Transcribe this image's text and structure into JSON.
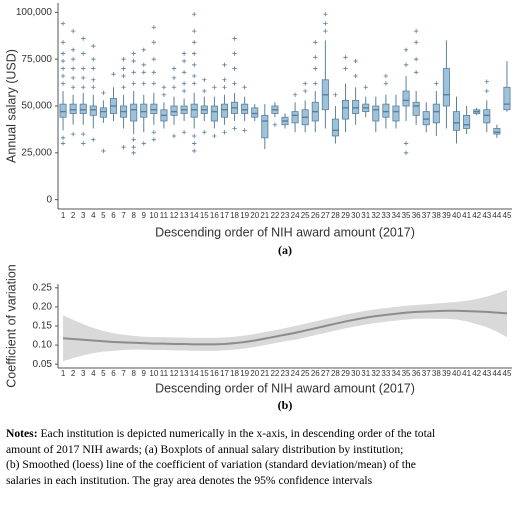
{
  "chart_data": [
    {
      "type": "boxplot",
      "panel_label": "(a)",
      "x_label": "Descending order of NIH award amount (2017)",
      "y_label": "Annual salary (USD)",
      "categories": [
        "1",
        "2",
        "3",
        "4",
        "5",
        "6",
        "7",
        "8",
        "9",
        "10",
        "11",
        "12",
        "13",
        "14",
        "15",
        "16",
        "17",
        "18",
        "19",
        "20",
        "21",
        "22",
        "23",
        "24",
        "25",
        "26",
        "27",
        "28",
        "29",
        "30",
        "31",
        "32",
        "33",
        "34",
        "35",
        "36",
        "37",
        "38",
        "39",
        "40",
        "41",
        "42",
        "43",
        "44",
        "45"
      ],
      "box_color": "#9cc2dd",
      "edge_color": "#5b7f98",
      "ylim": [
        -5000,
        105000
      ],
      "yticks": [
        0,
        {
          "value": 25000,
          "label": "25,000"
        },
        {
          "value": 50000,
          "label": "50,000"
        },
        {
          "value": 75000,
          "label": "75,000"
        },
        {
          "value": 100000,
          "label": "100,000"
        }
      ],
      "boxes": [
        {
          "low": 37000,
          "q1": 44000,
          "median": 47000,
          "q3": 51000,
          "high": 58000,
          "outliers": [
            30000,
            33000,
            62000,
            66000,
            70000,
            74000,
            78000,
            84000,
            94000
          ]
        },
        {
          "low": 40000,
          "q1": 46000,
          "median": 48000,
          "q3": 51000,
          "high": 56000,
          "outliers": [
            35000,
            60000,
            65000,
            70000,
            75000,
            80000,
            90000
          ]
        },
        {
          "low": 40000,
          "q1": 46000,
          "median": 48000,
          "q3": 51000,
          "high": 57000,
          "outliers": [
            30000,
            35000,
            60000,
            65000,
            70000,
            78000,
            86000
          ]
        },
        {
          "low": 38000,
          "q1": 45000,
          "median": 48000,
          "q3": 50000,
          "high": 56000,
          "outliers": [
            32000,
            60000,
            64000,
            70000,
            75000,
            82000
          ]
        },
        {
          "low": 41000,
          "q1": 44000,
          "median": 47000,
          "q3": 49000,
          "high": 53000,
          "outliers": [
            26000,
            57000
          ]
        },
        {
          "low": 42000,
          "q1": 46000,
          "median": 50000,
          "q3": 54000,
          "high": 60000,
          "outliers": [
            67000
          ]
        },
        {
          "low": 38000,
          "q1": 44000,
          "median": 47000,
          "q3": 50000,
          "high": 56000,
          "outliers": [
            28000,
            60000,
            66000,
            70000,
            75000
          ]
        },
        {
          "low": 35000,
          "q1": 42000,
          "median": 48000,
          "q3": 51000,
          "high": 58000,
          "outliers": [
            25000,
            28000,
            32000,
            62000,
            68000,
            74000,
            78000
          ]
        },
        {
          "low": 36000,
          "q1": 44000,
          "median": 47000,
          "q3": 51000,
          "high": 56000,
          "outliers": [
            30000,
            62000,
            68000,
            72000,
            80000
          ]
        },
        {
          "low": 40000,
          "q1": 46000,
          "median": 48000,
          "q3": 51000,
          "high": 57000,
          "outliers": [
            32000,
            36000,
            62000,
            68000,
            75000,
            84000,
            92000
          ]
        },
        {
          "low": 38000,
          "q1": 42000,
          "median": 45000,
          "q3": 48000,
          "high": 52000,
          "outliers": [
            56000,
            60000
          ]
        },
        {
          "low": 40000,
          "q1": 45000,
          "median": 47000,
          "q3": 50000,
          "high": 55000,
          "outliers": [
            34000,
            60000,
            65000,
            70000
          ]
        },
        {
          "low": 42000,
          "q1": 46000,
          "median": 48000,
          "q3": 50000,
          "high": 54000,
          "outliers": [
            36000,
            58000,
            62000,
            68000,
            74000,
            78000
          ]
        },
        {
          "low": 38000,
          "q1": 44000,
          "median": 48000,
          "q3": 51000,
          "high": 57000,
          "outliers": [
            26000,
            30000,
            34000,
            62000,
            66000,
            72000,
            78000,
            84000,
            90000,
            99000
          ]
        },
        {
          "low": 42000,
          "q1": 46000,
          "median": 48000,
          "q3": 50000,
          "high": 55000,
          "outliers": [
            36000,
            58000,
            64000
          ]
        },
        {
          "low": 38000,
          "q1": 42000,
          "median": 47000,
          "q3": 50000,
          "high": 55000,
          "outliers": [
            34000,
            60000
          ]
        },
        {
          "low": 40000,
          "q1": 44000,
          "median": 48000,
          "q3": 51000,
          "high": 56000,
          "outliers": [
            36000,
            60000,
            64000,
            72000
          ]
        },
        {
          "low": 42000,
          "q1": 46000,
          "median": 49000,
          "q3": 52000,
          "high": 57000,
          "outliers": [
            38000,
            62000,
            70000,
            78000,
            86000
          ]
        },
        {
          "low": 42000,
          "q1": 46000,
          "median": 48000,
          "q3": 51000,
          "high": 55000,
          "outliers": [
            37000,
            60000
          ]
        },
        {
          "low": 42000,
          "q1": 44000,
          "median": 46000,
          "q3": 49000,
          "high": 51000,
          "outliers": []
        },
        {
          "low": 27000,
          "q1": 33000,
          "median": 42000,
          "q3": 45000,
          "high": 51000,
          "outliers": []
        },
        {
          "low": 44000,
          "q1": 46000,
          "median": 48000,
          "q3": 50000,
          "high": 52000,
          "outliers": [
            40000
          ]
        },
        {
          "low": 38000,
          "q1": 40000,
          "median": 42000,
          "q3": 44000,
          "high": 46000,
          "outliers": []
        },
        {
          "low": 36000,
          "q1": 41000,
          "median": 45000,
          "q3": 47000,
          "high": 52000,
          "outliers": [
            56000
          ]
        },
        {
          "low": 36000,
          "q1": 40000,
          "median": 44000,
          "q3": 48000,
          "high": 53000,
          "outliers": [
            58000,
            62000
          ]
        },
        {
          "low": 36000,
          "q1": 42000,
          "median": 47000,
          "q3": 52000,
          "high": 58000,
          "outliers": [
            62000,
            70000,
            76000,
            84000
          ]
        },
        {
          "low": 38000,
          "q1": 48000,
          "median": 56000,
          "q3": 64000,
          "high": 85000,
          "outliers": [
            90000,
            94000,
            99000
          ]
        },
        {
          "low": 30000,
          "q1": 34000,
          "median": 37000,
          "q3": 43000,
          "high": 50000,
          "outliers": [
            56000
          ]
        },
        {
          "low": 36000,
          "q1": 43000,
          "median": 49000,
          "q3": 53000,
          "high": 62000,
          "outliers": [
            70000,
            76000
          ]
        },
        {
          "low": 40000,
          "q1": 46000,
          "median": 49000,
          "q3": 53000,
          "high": 60000,
          "outliers": [
            66000,
            74000
          ]
        },
        {
          "low": 44000,
          "q1": 47000,
          "median": 49000,
          "q3": 51000,
          "high": 55000,
          "outliers": [
            60000
          ]
        },
        {
          "low": 36000,
          "q1": 42000,
          "median": 48000,
          "q3": 50000,
          "high": 55000,
          "outliers": []
        },
        {
          "low": 38000,
          "q1": 44000,
          "median": 47000,
          "q3": 51000,
          "high": 56000,
          "outliers": [
            62000,
            66000
          ]
        },
        {
          "low": 38000,
          "q1": 42000,
          "median": 47000,
          "q3": 50000,
          "high": 56000,
          "outliers": []
        },
        {
          "low": 42000,
          "q1": 50000,
          "median": 53000,
          "q3": 58000,
          "high": 66000,
          "outliers": [
            25000,
            30000,
            72000,
            80000
          ]
        },
        {
          "low": 40000,
          "q1": 45000,
          "median": 50000,
          "q3": 52000,
          "high": 58000,
          "outliers": [
            68000,
            75000,
            84000,
            90000
          ]
        },
        {
          "low": 36000,
          "q1": 40000,
          "median": 43000,
          "q3": 47000,
          "high": 52000,
          "outliers": []
        },
        {
          "low": 34000,
          "q1": 41000,
          "median": 47000,
          "q3": 51000,
          "high": 58000,
          "outliers": [
            62000
          ]
        },
        {
          "low": 38000,
          "q1": 50000,
          "median": 56000,
          "q3": 70000,
          "high": 85000,
          "outliers": []
        },
        {
          "low": 30000,
          "q1": 37000,
          "median": 41000,
          "q3": 47000,
          "high": 55000,
          "outliers": []
        },
        {
          "low": 35000,
          "q1": 38000,
          "median": 40000,
          "q3": 45000,
          "high": 50000,
          "outliers": []
        },
        {
          "low": 45000,
          "q1": 46000,
          "median": 47000,
          "q3": 48000,
          "high": 49000,
          "outliers": []
        },
        {
          "low": 36000,
          "q1": 41000,
          "median": 45000,
          "q3": 48000,
          "high": 53000,
          "outliers": [
            58000,
            63000
          ]
        },
        {
          "low": 33000,
          "q1": 35000,
          "median": 36000,
          "q3": 38000,
          "high": 40000,
          "outliers": []
        },
        {
          "low": 47000,
          "q1": 48000,
          "median": 51000,
          "q3": 60000,
          "high": 74000,
          "outliers": []
        }
      ]
    },
    {
      "type": "line_band",
      "panel_label": "(b)",
      "x_label": "Descending order of NIH award amount (2017)",
      "y_label": "Coefficient of variation",
      "categories": [
        "1",
        "2",
        "3",
        "4",
        "5",
        "6",
        "7",
        "8",
        "9",
        "10",
        "11",
        "12",
        "13",
        "14",
        "15",
        "16",
        "17",
        "18",
        "19",
        "20",
        "21",
        "22",
        "23",
        "24",
        "25",
        "26",
        "27",
        "28",
        "29",
        "30",
        "31",
        "32",
        "33",
        "34",
        "35",
        "36",
        "37",
        "38",
        "39",
        "40",
        "41",
        "42",
        "43",
        "44",
        "45"
      ],
      "color": "#8c8c8c",
      "band_color": "#d9d9d9",
      "ylim": [
        0.04,
        0.26
      ],
      "yticks": [
        {
          "value": 0.05,
          "label": "0.05"
        },
        {
          "value": 0.1,
          "label": "0.10"
        },
        {
          "value": 0.15,
          "label": "0.15"
        },
        {
          "value": 0.2,
          "label": "0.20"
        },
        {
          "value": 0.25,
          "label": "0.25"
        }
      ],
      "values": [
        0.118,
        0.116,
        0.114,
        0.112,
        0.11,
        0.108,
        0.107,
        0.106,
        0.105,
        0.104,
        0.104,
        0.103,
        0.103,
        0.102,
        0.102,
        0.102,
        0.103,
        0.105,
        0.108,
        0.112,
        0.117,
        0.122,
        0.127,
        0.132,
        0.138,
        0.144,
        0.15,
        0.156,
        0.162,
        0.167,
        0.172,
        0.176,
        0.179,
        0.182,
        0.185,
        0.187,
        0.188,
        0.189,
        0.19,
        0.19,
        0.189,
        0.188,
        0.187,
        0.185,
        0.183
      ],
      "upper": [
        0.178,
        0.166,
        0.155,
        0.145,
        0.137,
        0.131,
        0.127,
        0.124,
        0.122,
        0.121,
        0.121,
        0.12,
        0.12,
        0.119,
        0.119,
        0.119,
        0.12,
        0.122,
        0.125,
        0.129,
        0.134,
        0.139,
        0.144,
        0.15,
        0.156,
        0.162,
        0.168,
        0.174,
        0.18,
        0.185,
        0.19,
        0.194,
        0.197,
        0.2,
        0.203,
        0.205,
        0.207,
        0.209,
        0.211,
        0.213,
        0.216,
        0.221,
        0.227,
        0.235,
        0.245
      ],
      "lower": [
        0.058,
        0.066,
        0.073,
        0.079,
        0.083,
        0.085,
        0.087,
        0.088,
        0.088,
        0.087,
        0.087,
        0.086,
        0.086,
        0.085,
        0.085,
        0.085,
        0.086,
        0.088,
        0.091,
        0.095,
        0.1,
        0.105,
        0.11,
        0.114,
        0.12,
        0.126,
        0.132,
        0.138,
        0.144,
        0.149,
        0.154,
        0.158,
        0.161,
        0.164,
        0.167,
        0.169,
        0.169,
        0.169,
        0.169,
        0.167,
        0.162,
        0.155,
        0.147,
        0.135,
        0.121
      ]
    }
  ],
  "notes": {
    "label": "Notes:",
    "lines": [
      "Each institution is depicted numerically in the x-axis, in descending order of the total",
      "amount of 2017 NIH awards; (a) Boxplots of annual salary distribution by institution;",
      "(b) Smoothed (loess) line of the coefficient of variation (standard deviation/mean) of the",
      "salaries in each institution. The gray area denotes the 95% confidence intervals"
    ]
  }
}
